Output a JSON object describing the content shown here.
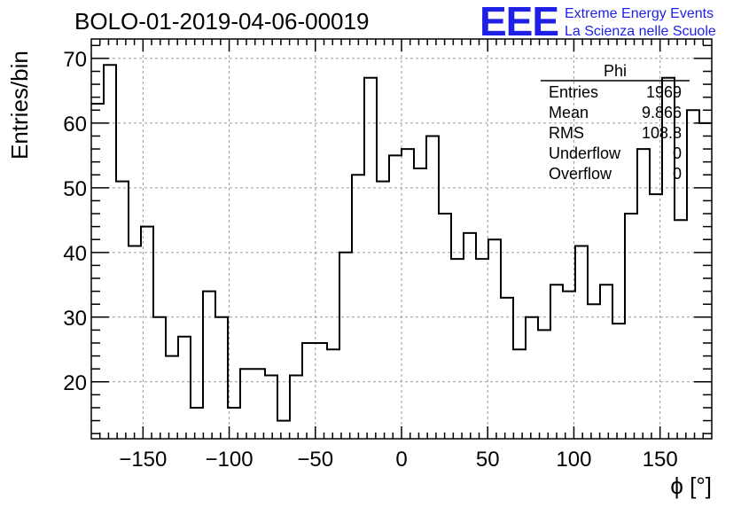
{
  "chart_data": {
    "type": "histogram",
    "title": "BOLO-01-2019-04-06-00019",
    "xlabel": "ϕ [°]",
    "ylabel": "Entries/bin",
    "xlim": [
      -180,
      180
    ],
    "ylim": [
      11.2,
      73
    ],
    "grid": true,
    "bin_width": 7.2,
    "x_ticks": [
      -150,
      -100,
      -50,
      0,
      50,
      100,
      150
    ],
    "x_tick_labels": [
      "−150",
      "−100",
      "−50",
      "0",
      "50",
      "100",
      "150"
    ],
    "y_ticks": [
      20,
      30,
      40,
      50,
      60,
      70
    ],
    "y_tick_labels": [
      "20",
      "30",
      "40",
      "50",
      "60",
      "70"
    ],
    "bin_edges_start": -180,
    "values": [
      63,
      69,
      51,
      41,
      44,
      30,
      24,
      27,
      16,
      34,
      30,
      16,
      22,
      22,
      21,
      14,
      21,
      26,
      26,
      25,
      40,
      52,
      67,
      51,
      55,
      56,
      53,
      58,
      46,
      39,
      43,
      39,
      42,
      33,
      25,
      30,
      28,
      35,
      34,
      41,
      32,
      35,
      29,
      46,
      56,
      49,
      67,
      45,
      62,
      60
    ]
  },
  "stats_box": {
    "title": "Phi",
    "rows": [
      {
        "label": "Entries",
        "value": "1969"
      },
      {
        "label": "Mean",
        "value": "9.866"
      },
      {
        "label": "RMS",
        "value": "108.8"
      },
      {
        "label": "Underflow",
        "value": "0"
      },
      {
        "label": "Overflow",
        "value": "0"
      }
    ]
  },
  "logo": {
    "letters": "EEE",
    "line1": "Extreme Energy Events",
    "line2": "La Scienza nelle Scuole"
  },
  "colors": {
    "logo": "#1f1fe6",
    "line": "#000000",
    "grid": "#9a9a9a"
  }
}
